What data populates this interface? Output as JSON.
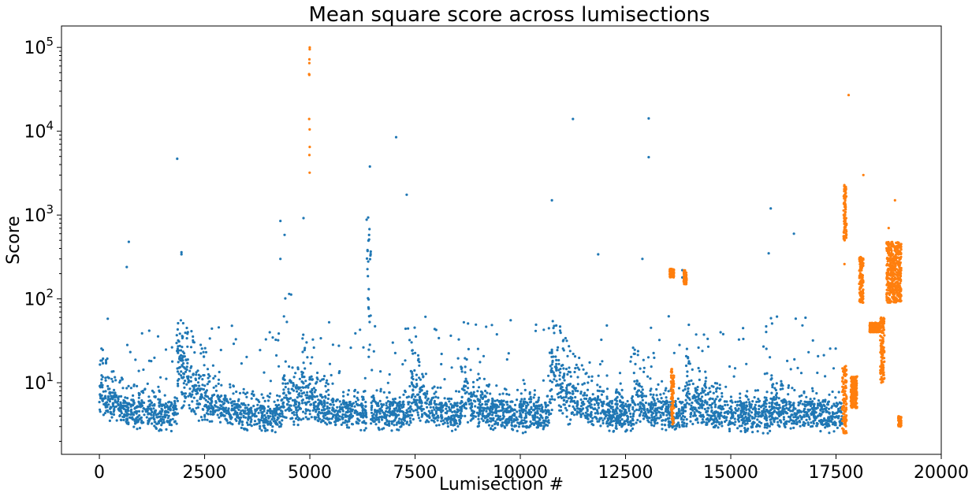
{
  "chart_data": {
    "type": "scatter",
    "title": "Mean square score across lumisections",
    "xlabel": "Lumisection #",
    "ylabel": "Score",
    "xlim": [
      -900,
      20000
    ],
    "ylim": [
      1.4,
      180000
    ],
    "y_scale": "log",
    "grid": false,
    "legend": "none",
    "x_ticks": [
      0,
      2500,
      5000,
      7500,
      10000,
      12500,
      15000,
      17500,
      20000
    ],
    "x_tick_labels": [
      "0",
      "2500",
      "5000",
      "7500",
      "10000",
      "12500",
      "15000",
      "17500",
      "20000"
    ],
    "y_ticks": [
      10,
      100,
      1000,
      10000,
      100000
    ],
    "y_tick_labels": [
      {
        "base": "10",
        "exp": "1"
      },
      {
        "base": "10",
        "exp": "2"
      },
      {
        "base": "10",
        "exp": "3"
      },
      {
        "base": "10",
        "exp": "4"
      },
      {
        "base": "10",
        "exp": "5"
      }
    ],
    "colors": {
      "inlier": "#1f77b4",
      "anomaly": "#ff7f0e"
    },
    "series": [
      {
        "class": "inlier",
        "color": "#1f77b4",
        "description_segments": [
          {
            "x_range": [
              0,
              1850
            ],
            "typical": [
              2.6,
              8
            ],
            "decay_from": 30
          },
          {
            "x_range": [
              1850,
              4350
            ],
            "typical": [
              2.5,
              7
            ],
            "decay_from": 90
          },
          {
            "x_range": [
              4350,
              4800
            ],
            "typical": [
              3,
              15
            ],
            "decay_from": 20
          },
          {
            "x_range": [
              4800,
              6350
            ],
            "typical": [
              2.6,
              8
            ],
            "decay_from": 45
          },
          {
            "x_range": [
              6350,
              6450
            ],
            "typical": [
              20,
              900
            ],
            "decay_from": 900
          },
          {
            "x_range": [
              6450,
              7400
            ],
            "typical": [
              2.6,
              8
            ],
            "decay_from": 10
          },
          {
            "x_range": [
              7400,
              8600
            ],
            "typical": [
              2.6,
              8
            ],
            "decay_from": 40
          },
          {
            "x_range": [
              8600,
              10700
            ],
            "typical": [
              2.4,
              8
            ],
            "decay_from": 25
          },
          {
            "x_range": [
              10700,
              12700
            ],
            "typical": [
              2.5,
              8
            ],
            "decay_from": 90
          },
          {
            "x_range": [
              12700,
              13900
            ],
            "typical": [
              2.5,
              8
            ],
            "decay_from": 35
          },
          {
            "x_range": [
              13900,
              15950
            ],
            "typical": [
              2.4,
              8
            ],
            "decay_from": 30
          },
          {
            "x_range": [
              15950,
              17650
            ],
            "typical": [
              2.5,
              8
            ],
            "decay_from": 14
          }
        ],
        "outliers": [
          {
            "x": 700,
            "y": 480
          },
          {
            "x": 650,
            "y": 240
          },
          {
            "x": 200,
            "y": 58
          },
          {
            "x": 1850,
            "y": 4700
          },
          {
            "x": 1950,
            "y": 360
          },
          {
            "x": 1950,
            "y": 340
          },
          {
            "x": 4300,
            "y": 850
          },
          {
            "x": 4400,
            "y": 580
          },
          {
            "x": 4300,
            "y": 300
          },
          {
            "x": 4850,
            "y": 920
          },
          {
            "x": 7050,
            "y": 8500
          },
          {
            "x": 7300,
            "y": 1750
          },
          {
            "x": 10750,
            "y": 1500
          },
          {
            "x": 11250,
            "y": 14000
          },
          {
            "x": 11850,
            "y": 340
          },
          {
            "x": 13050,
            "y": 14200
          },
          {
            "x": 13050,
            "y": 4900
          },
          {
            "x": 12900,
            "y": 300
          },
          {
            "x": 15950,
            "y": 1200
          },
          {
            "x": 16500,
            "y": 600
          },
          {
            "x": 15900,
            "y": 350
          },
          {
            "x": 6350,
            "y": 880
          },
          {
            "x": 13850,
            "y": 220
          },
          {
            "x": 13850,
            "y": 180
          }
        ]
      },
      {
        "class": "anomaly",
        "color": "#ff7f0e",
        "clusters": [
          {
            "x_range": [
              4980,
              5000
            ],
            "values": [
              100000,
              95000,
              72000,
              65000,
              48000,
              47000,
              14000,
              10500,
              6500,
              5200,
              3200
            ]
          },
          {
            "x_range": [
              13550,
              13650
            ],
            "y_range": [
              180,
              230
            ]
          },
          {
            "x_range": [
              13580,
              13650
            ],
            "y_range": [
              3,
              15
            ]
          },
          {
            "x_range": [
              13880,
              13950
            ],
            "y_range": [
              150,
              220
            ]
          },
          {
            "x_range": [
              17680,
              17750
            ],
            "y_range": [
              500,
              2300
            ]
          },
          {
            "x_range": [
              17650,
              17750
            ],
            "y_range": [
              2.5,
              16
            ]
          },
          {
            "x_range": [
              17850,
              18000
            ],
            "y_range": [
              5,
              12
            ]
          },
          {
            "x_range": [
              18050,
              18150
            ],
            "y_range": [
              90,
              320
            ]
          },
          {
            "x_range": [
              18300,
              18550
            ],
            "y_range": [
              40,
              52
            ]
          },
          {
            "x_range": [
              18550,
              18650
            ],
            "y_range": [
              10,
              60
            ]
          },
          {
            "x_range": [
              18700,
              19050
            ],
            "y_range": [
              90,
              480
            ]
          },
          {
            "x_range": [
              18980,
              19050
            ],
            "y_range": [
              3,
              4
            ]
          }
        ],
        "outliers": [
          {
            "x": 17800,
            "y": 27000
          },
          {
            "x": 18150,
            "y": 3000
          },
          {
            "x": 18900,
            "y": 1500
          },
          {
            "x": 18750,
            "y": 700
          },
          {
            "x": 17700,
            "y": 260
          }
        ]
      }
    ]
  }
}
